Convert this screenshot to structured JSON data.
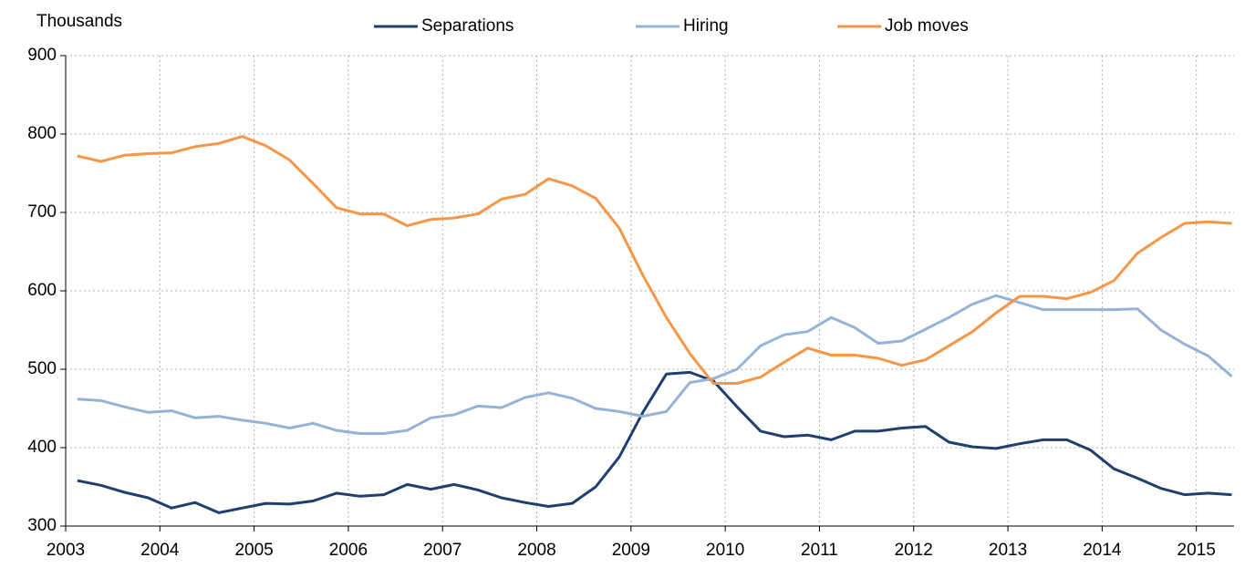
{
  "chart_data": {
    "type": "line",
    "y_label": "Thousands",
    "x": [
      2003.125,
      2003.375,
      2003.625,
      2003.875,
      2004.125,
      2004.375,
      2004.625,
      2004.875,
      2005.125,
      2005.375,
      2005.625,
      2005.875,
      2006.125,
      2006.375,
      2006.625,
      2006.875,
      2007.125,
      2007.375,
      2007.625,
      2007.875,
      2008.125,
      2008.375,
      2008.625,
      2008.875,
      2009.125,
      2009.375,
      2009.625,
      2009.875,
      2010.125,
      2010.375,
      2010.625,
      2010.875,
      2011.125,
      2011.375,
      2011.625,
      2011.875,
      2012.125,
      2012.375,
      2012.625,
      2012.875,
      2013.125,
      2013.375,
      2013.625,
      2013.875,
      2014.125,
      2014.375,
      2014.625,
      2014.875,
      2015.125,
      2015.375
    ],
    "series": [
      {
        "name": "Separations",
        "color": "#1f3f6e",
        "values": [
          358,
          352,
          343,
          336,
          323,
          330,
          317,
          323,
          329,
          328,
          332,
          342,
          338,
          340,
          353,
          347,
          353,
          346,
          336,
          330,
          325,
          329,
          350,
          388,
          445,
          494,
          496,
          485,
          452,
          421,
          414,
          416,
          410,
          421,
          421,
          425,
          427,
          407,
          401,
          399,
          405,
          410,
          410,
          397,
          373,
          361,
          348,
          340,
          342,
          340
        ]
      },
      {
        "name": "Hiring",
        "color": "#95b3d7",
        "values": [
          462,
          460,
          452,
          445,
          447,
          438,
          440,
          435,
          431,
          425,
          431,
          422,
          418,
          418,
          422,
          438,
          442,
          453,
          451,
          464,
          470,
          463,
          450,
          446,
          440,
          446,
          483,
          488,
          500,
          530,
          544,
          548,
          566,
          553,
          533,
          536,
          551,
          566,
          583,
          594,
          585,
          576,
          576,
          576,
          576,
          577,
          550,
          532,
          517,
          491
        ]
      },
      {
        "name": "Job moves",
        "color": "#f79646",
        "values": [
          772,
          765,
          773,
          775,
          776,
          784,
          788,
          797,
          785,
          767,
          737,
          706,
          698,
          698,
          683,
          691,
          693,
          698,
          717,
          723,
          743,
          734,
          718,
          680,
          620,
          566,
          520,
          482,
          482,
          490,
          509,
          527,
          518,
          518,
          514,
          505,
          512,
          530,
          548,
          572,
          593,
          593,
          590,
          598,
          613,
          648,
          668,
          686,
          688,
          686
        ]
      }
    ],
    "xlim": [
      2003,
      2015.4
    ],
    "xticks": [
      2003,
      2004,
      2005,
      2006,
      2007,
      2008,
      2009,
      2010,
      2011,
      2012,
      2013,
      2014,
      2015
    ],
    "ylim": [
      300,
      900
    ],
    "yticks": [
      300,
      400,
      500,
      600,
      700,
      800,
      900
    ],
    "grid": true,
    "legend": "top"
  }
}
